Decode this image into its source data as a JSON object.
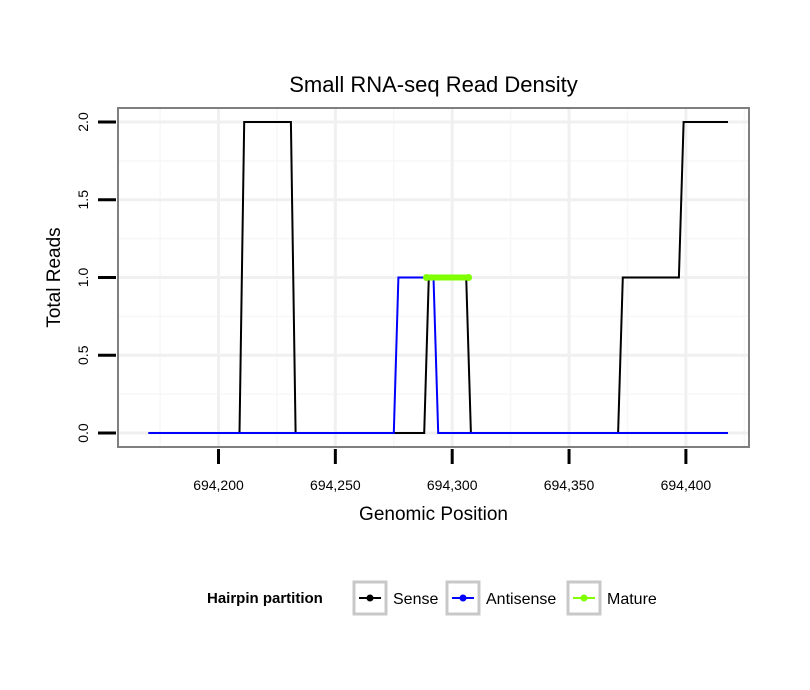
{
  "chart_data": {
    "type": "line",
    "title": "Small RNA-seq Read Density",
    "xlabel": "Genomic Position",
    "ylabel": "Total Reads",
    "xlim": [
      694157,
      694427
    ],
    "ylim": [
      -0.09,
      2.09
    ],
    "x_ticks": [
      694200,
      694250,
      694300,
      694350,
      694400
    ],
    "x_tick_labels": [
      "694,200",
      "694,250",
      "694,300",
      "694,350",
      "694,400"
    ],
    "y_ticks": [
      0,
      0.5,
      1,
      1.5,
      2
    ],
    "y_tick_labels": [
      "0.0",
      "0.5",
      "1.0",
      "1.5",
      "2.0"
    ],
    "grid": true,
    "legend": {
      "title": "Hairpin partition",
      "position": "bottom",
      "entries": [
        "Sense",
        "Antisense",
        "Mature"
      ]
    },
    "series": [
      {
        "name": "Sense",
        "color": "#000000",
        "x": [
          694170,
          694209,
          694211,
          694231,
          694233,
          694288,
          694290,
          694306,
          694308,
          694371,
          694373,
          694397,
          694399,
          694418
        ],
        "y": [
          0,
          0,
          2,
          2,
          0,
          0,
          1,
          1,
          0,
          0,
          1,
          1,
          2,
          2
        ]
      },
      {
        "name": "Antisense",
        "color": "#0000ff",
        "x": [
          694170,
          694275,
          694277,
          694292,
          694294,
          694418
        ],
        "y": [
          0,
          0,
          1,
          1,
          0,
          0
        ]
      },
      {
        "name": "Mature",
        "color": "#7fff00",
        "x": [
          694289,
          694307
        ],
        "y": [
          1,
          1
        ]
      }
    ]
  }
}
